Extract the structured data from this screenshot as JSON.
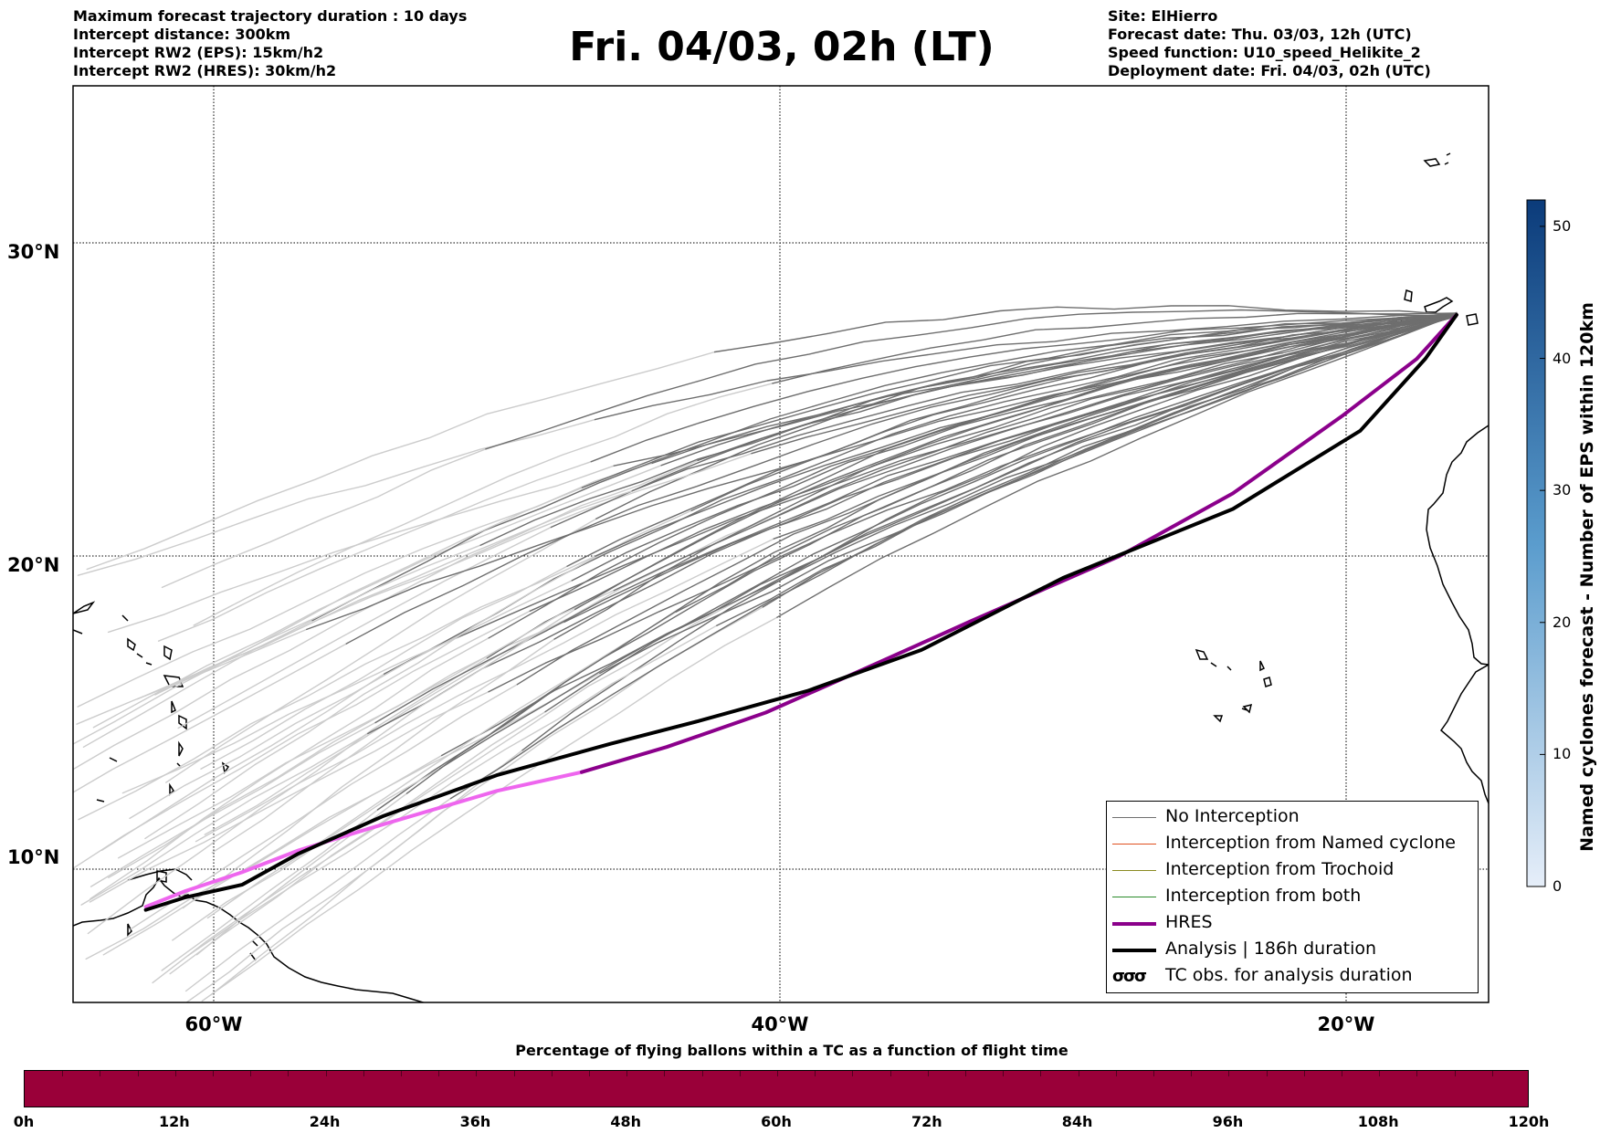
{
  "header": {
    "left_lines": [
      "Maximum forecast trajectory duration : 10 days",
      "Intercept distance: 300km",
      "Intercept RW2 (EPS):  15km/h2",
      "Intercept RW2 (HRES): 30km/h2"
    ],
    "title": "Fri. 04/03, 02h (LT)",
    "right_lines": [
      "Site: ElHierro",
      "Forecast date: Thu. 03/03, 12h (UTC)",
      "Speed function: U10_speed_Helikite_2",
      "Deployment date: Fri. 04/03, 02h (UTC)"
    ]
  },
  "map": {
    "lon_range": [
      -65,
      15
    ],
    "lat_range": [
      5.3,
      34.6
    ],
    "lat_labels": [
      "30°N",
      "20°N",
      "10°N"
    ],
    "lat_values": [
      30,
      20,
      10
    ],
    "lon_labels": [
      "60°W",
      "40°W",
      "20°W"
    ],
    "lon_values": [
      -60,
      -40,
      -20
    ],
    "colors": {
      "eps_no_interception_dark": "#6e6e6e",
      "eps_no_interception_light": "#cccccc",
      "hres": "#8b008b",
      "hres_light": "#ee66ee",
      "analysis": "#000000",
      "coast": "#000000"
    },
    "trajectories": {
      "hres": [
        [
          -16.1,
          27.7
        ],
        [
          -17.5,
          26.3
        ],
        [
          -20.1,
          24.5
        ],
        [
          -24.0,
          22.0
        ],
        [
          -28.0,
          20.0
        ],
        [
          -33.3,
          17.9
        ],
        [
          -37.0,
          16.4
        ],
        [
          -40.5,
          15.0
        ],
        [
          -44.0,
          13.9
        ],
        [
          -47.0,
          13.1
        ]
      ],
      "hres_light": [
        [
          -47.0,
          13.1
        ],
        [
          -50.0,
          12.5
        ],
        [
          -54.5,
          11.3
        ],
        [
          -57.0,
          10.6
        ],
        [
          -59.0,
          9.9
        ],
        [
          -61.0,
          9.3
        ],
        [
          -62.4,
          8.8
        ]
      ],
      "analysis": [
        [
          -16.1,
          27.7
        ],
        [
          -17.2,
          26.3
        ],
        [
          -19.5,
          24.0
        ],
        [
          -24.0,
          21.5
        ],
        [
          -30.0,
          19.3
        ],
        [
          -35.0,
          17.0
        ],
        [
          -39.0,
          15.7
        ],
        [
          -43.0,
          14.7
        ],
        [
          -46.0,
          14.0
        ],
        [
          -50.0,
          13.0
        ],
        [
          -54.0,
          11.7
        ],
        [
          -57.0,
          10.5
        ],
        [
          -59.0,
          9.5
        ],
        [
          -61.0,
          9.1
        ],
        [
          -62.4,
          8.7
        ]
      ]
    },
    "coast_name": "coastline-icon"
  },
  "legend": {
    "items": [
      {
        "label": "No Interception",
        "color": "#707070",
        "style": "thin"
      },
      {
        "label": "Interception from Named cyclone",
        "color": "#e05020",
        "style": "thin"
      },
      {
        "label": "Interception from Trochoid",
        "color": "#8a8a20",
        "style": "thin"
      },
      {
        "label": "Interception from both",
        "color": "#2a8a2a",
        "style": "thin"
      },
      {
        "label": "HRES",
        "color": "#8b008b",
        "style": "thick"
      },
      {
        "label": "Analysis | 186h duration",
        "color": "#000000",
        "style": "thick"
      },
      {
        "label": "TC obs. for analysis duration",
        "color": "#000000",
        "style": "symbol"
      }
    ],
    "symbol_glyphs": "σσσ"
  },
  "colorbar": {
    "label": "Named cyclones forecast - Number of EPS within 120km",
    "min": 0,
    "max": 52,
    "ticks": [
      "0",
      "10",
      "20",
      "30",
      "40",
      "50"
    ],
    "tick_values": [
      0,
      10,
      20,
      30,
      40,
      50
    ],
    "color_low": "#e6eef9",
    "color_high": "#0b3b7a"
  },
  "time_bar": {
    "title": "Percentage of flying ballons within a TC as a function of flight time",
    "color": "#9a0039",
    "labels": [
      "0h",
      "12h",
      "24h",
      "36h",
      "48h",
      "60h",
      "72h",
      "84h",
      "96h",
      "108h",
      "120h"
    ],
    "max_hours": 120
  }
}
